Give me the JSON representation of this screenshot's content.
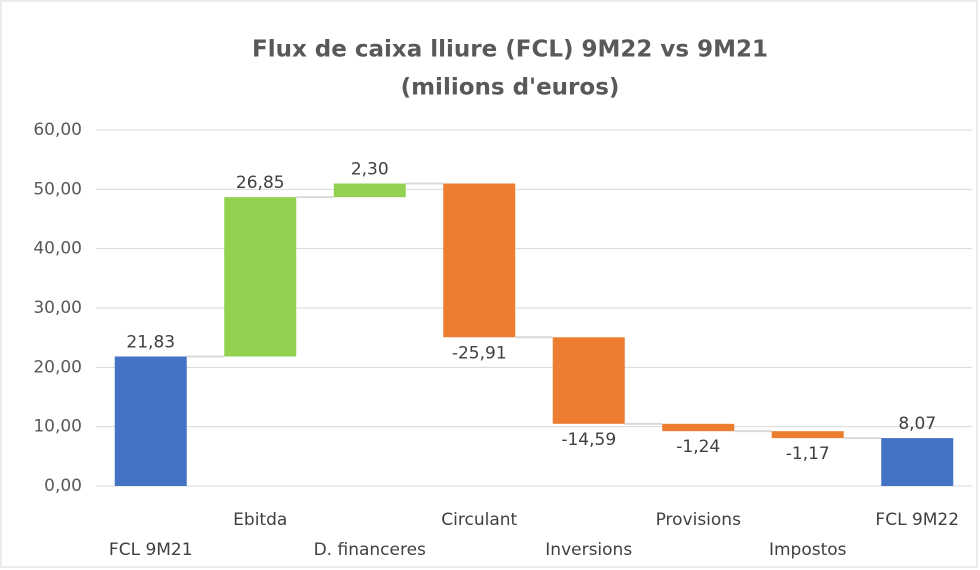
{
  "chart_data": {
    "type": "waterfall",
    "title": "Flux de caixa lliure (FCL) 9M22 vs 9M21",
    "subtitle": "(milions d'euros)",
    "categories": [
      "FCL 9M21",
      "Ebitda",
      "D. financeres",
      "Circulant",
      "Inversions",
      "Provisions",
      "Impostos",
      "FCL 9M22"
    ],
    "values": [
      21.83,
      26.85,
      2.3,
      -25.91,
      -14.59,
      -1.24,
      -1.17,
      8.07
    ],
    "value_labels": [
      "21,83",
      "26,85",
      "2,30",
      "-25,91",
      "-14,59",
      "-1,24",
      "-1,17",
      "8,07"
    ],
    "totals": [
      true,
      false,
      false,
      false,
      false,
      false,
      false,
      true
    ],
    "colors": [
      "#4472c4",
      "#92d050",
      "#92d050",
      "#ed7d31",
      "#ed7d31",
      "#ed7d31",
      "#ed7d31",
      "#4472c4"
    ],
    "ylim": [
      0,
      60
    ],
    "yticks": [
      {
        "value": 0,
        "label": "0,00"
      },
      {
        "value": 10,
        "label": "10,00"
      },
      {
        "value": 20,
        "label": "20,00"
      },
      {
        "value": 30,
        "label": "30,00"
      },
      {
        "value": 40,
        "label": "40,00"
      },
      {
        "value": 50,
        "label": "50,00"
      },
      {
        "value": 60,
        "label": "60,00"
      }
    ],
    "grid": true
  }
}
